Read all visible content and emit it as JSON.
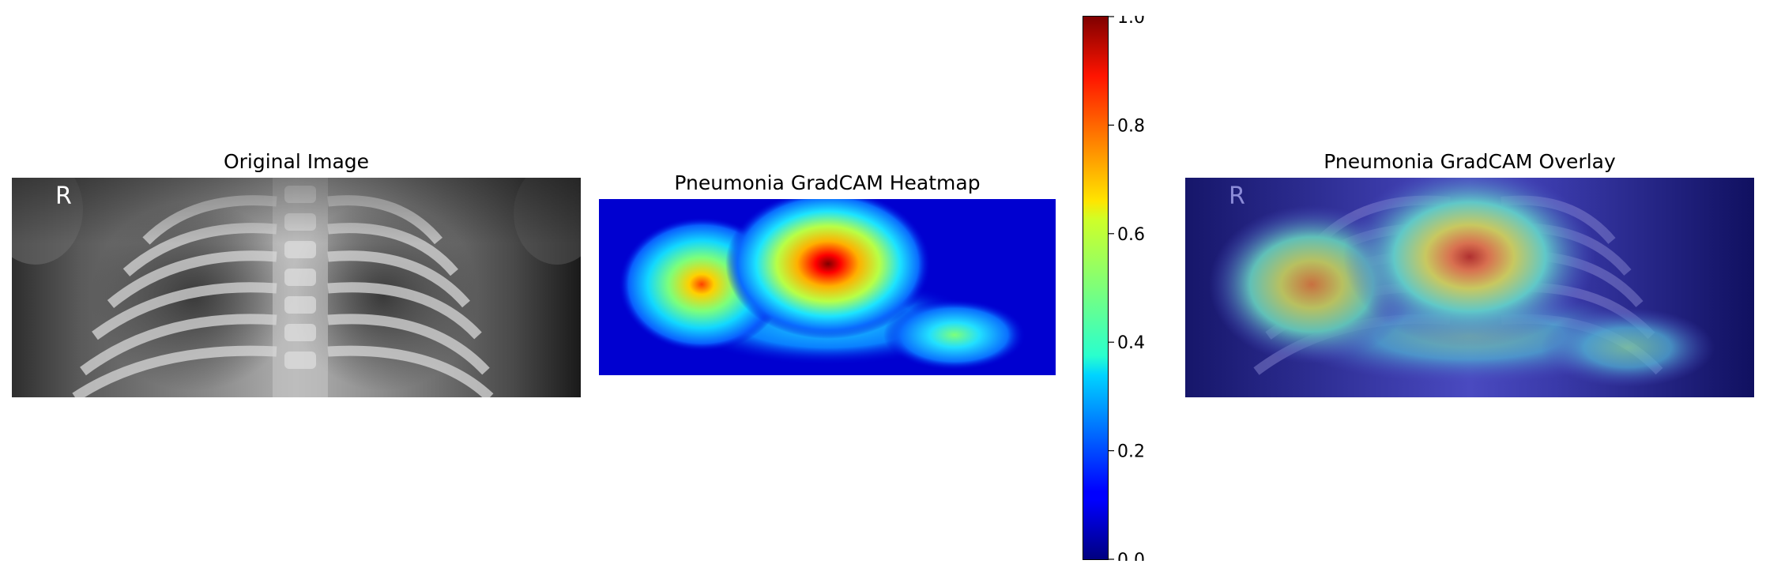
{
  "panels": {
    "original": {
      "title": "Original Image",
      "marker_letter": "R"
    },
    "heatmap": {
      "title": "Pneumonia GradCAM Heatmap"
    },
    "overlay": {
      "title": "Pneumonia GradCAM Overlay",
      "marker_letter": "R"
    }
  },
  "colorbar": {
    "colormap": "jet",
    "range": [
      0.0,
      1.0
    ],
    "ticks": [
      "0.0",
      "0.2",
      "0.4",
      "0.6",
      "0.8",
      "1.0"
    ]
  },
  "colors": {
    "jet_low": "#00007f",
    "jet_mid": "#7dff7a",
    "jet_high": "#7f0000"
  }
}
